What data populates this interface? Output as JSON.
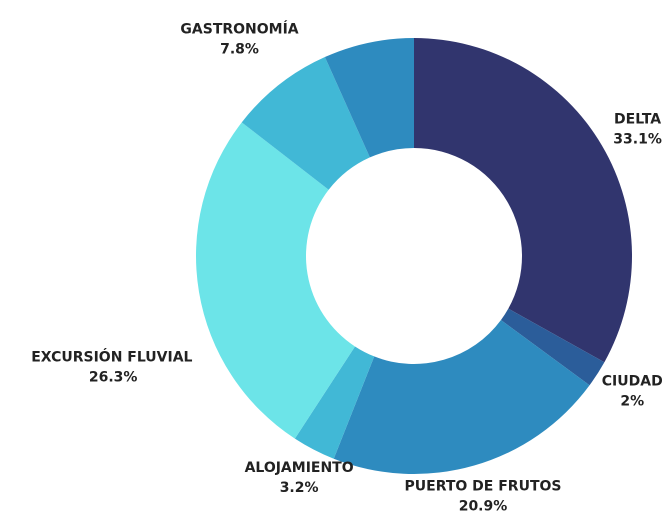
{
  "chart_data": {
    "type": "donut",
    "categories": [
      "DELTA",
      "CIUDAD",
      "PUERTO DE FRUTOS",
      "ALOJAMIENTO",
      "EXCURSIÓN FLUVIAL",
      "GASTRONOMÍA",
      null
    ],
    "values": [
      33.1,
      2,
      20.9,
      3.2,
      26.3,
      7.8,
      6.7
    ],
    "value_labels": [
      "33.1%",
      "2%",
      "20.9%",
      "3.2%",
      "26.3%",
      "7.8%",
      null
    ],
    "colors": [
      "#31356e",
      "#2b5d9a",
      "#2e8bbf",
      "#41b8d6",
      "#6ce4e8",
      "#41b8d6",
      "#2e8bbf"
    ]
  }
}
